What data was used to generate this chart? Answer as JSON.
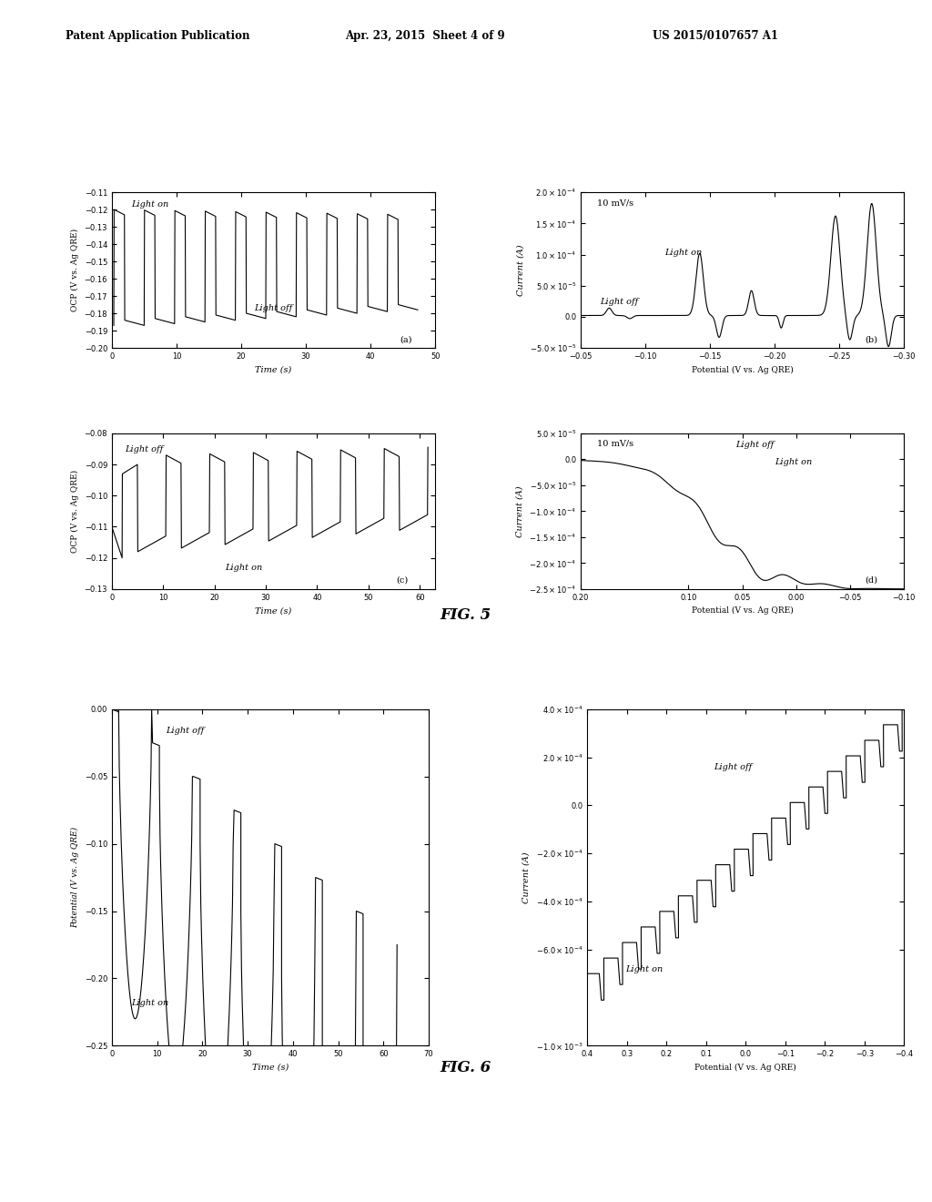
{
  "header_left": "Patent Application Publication",
  "header_mid": "Apr. 23, 2015  Sheet 4 of 9",
  "header_right": "US 2015/0107657 A1",
  "fig5_label": "FIG. 5",
  "fig6_label": "FIG. 6",
  "background_color": "#ffffff",
  "text_color": "#000000"
}
